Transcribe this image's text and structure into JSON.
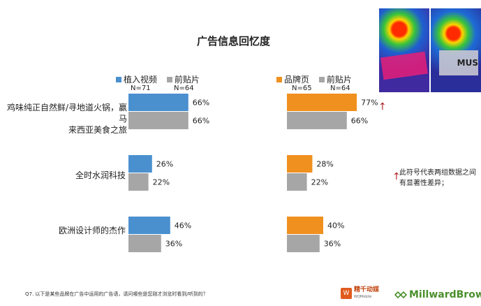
{
  "title": "广告信息回忆度",
  "legend_left": {
    "series_a": {
      "label": "植入视频",
      "n": "N=71",
      "color": "#4a90cf"
    },
    "series_b": {
      "label": "前贴片",
      "n": "N=64",
      "color": "#a6a6a6"
    }
  },
  "legend_right": {
    "series_a": {
      "label": "品牌页",
      "n": "N=65",
      "color": "#f0901f"
    },
    "series_b": {
      "label": "前贴片",
      "n": "N=64",
      "color": "#a6a6a6"
    }
  },
  "categories": [
    {
      "line1": "鸡味纯正自然鲜/寻地道火锅，赢马",
      "line2": "来西亚美食之旅"
    },
    {
      "line1": "全时水润科技",
      "line2": ""
    },
    {
      "line1": "欧洲设计师的杰作",
      "line2": ""
    }
  ],
  "chart_data": [
    {
      "type": "bar",
      "orientation": "horizontal",
      "categories": [
        "鸡味纯正自然鲜/寻地道火锅，赢马来西亚美食之旅",
        "全时水润科技",
        "欧洲设计师的杰作"
      ],
      "series": [
        {
          "name": "植入视频",
          "values": [
            66,
            26,
            46
          ],
          "labels": [
            "66%",
            "26%",
            "46%"
          ]
        },
        {
          "name": "前贴片",
          "values": [
            66,
            22,
            36
          ],
          "labels": [
            "66%",
            "22%",
            "36%"
          ]
        }
      ],
      "xlim": [
        0,
        100
      ],
      "colors": [
        "#4a90cf",
        "#a6a6a6"
      ]
    },
    {
      "type": "bar",
      "orientation": "horizontal",
      "categories": [
        "鸡味纯正自然鲜/寻地道火锅，赢马来西亚美食之旅",
        "全时水润科技",
        "欧洲设计师的杰作"
      ],
      "series": [
        {
          "name": "品牌页",
          "values": [
            77,
            28,
            40
          ],
          "labels": [
            "77%",
            "28%",
            "40%"
          ]
        },
        {
          "name": "前贴片",
          "values": [
            66,
            22,
            36
          ],
          "labels": [
            "66%",
            "22%",
            "36%"
          ]
        }
      ],
      "xlim": [
        0,
        100
      ],
      "colors": [
        "#f0901f",
        "#a6a6a6"
      ],
      "significant": [
        true,
        false,
        false
      ]
    }
  ],
  "note": "此符号代表两组数据之间有显著性差异；",
  "footnote": "Q7. 以下是某些品牌在广告中运用的广告语，请问哪些是您刚才浏览时看到/听到的？",
  "thumb_text": "MUS",
  "brand": {
    "wq_name": "精千动媒",
    "wq_sub": "WQMobile",
    "mb_name": "MillwardBrown",
    "mb_color": "#4a8f2c"
  }
}
